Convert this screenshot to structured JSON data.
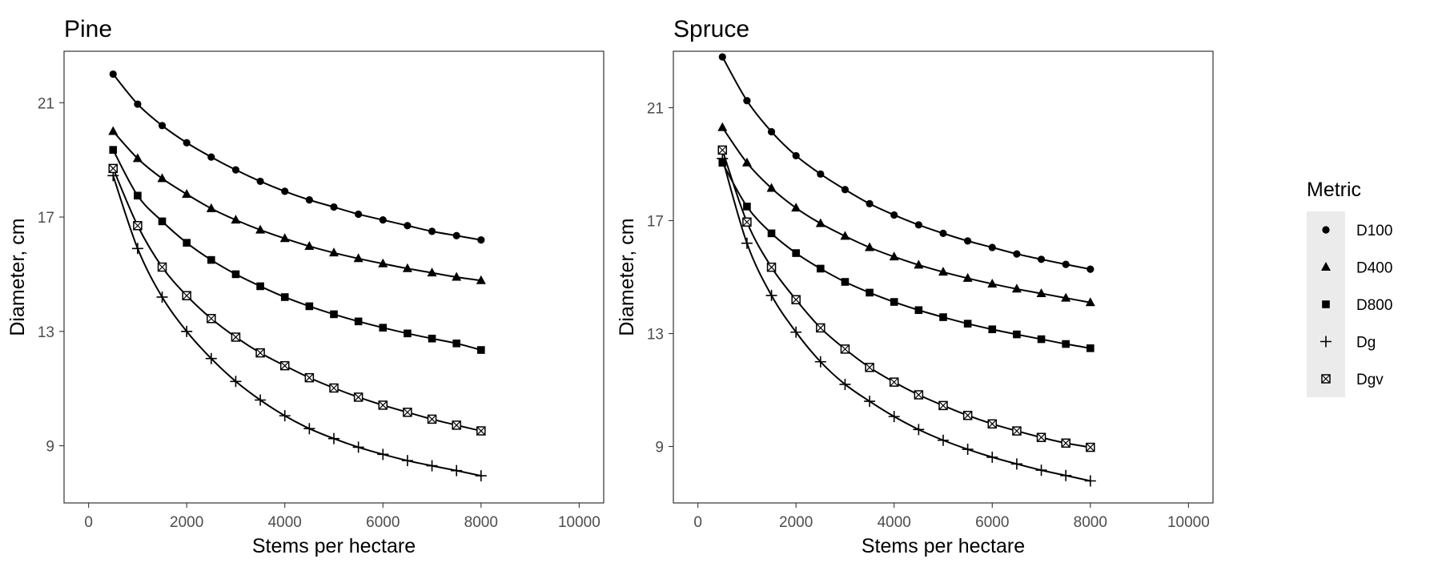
{
  "chart_data": [
    {
      "type": "line",
      "title": "Pine",
      "xlabel": "Stems per hectare",
      "ylabel": "Diameter, cm",
      "xlim": [
        -500,
        10500
      ],
      "ylim": [
        7.0,
        22.8
      ],
      "xticks": [
        0,
        2000,
        4000,
        6000,
        8000,
        10000
      ],
      "xtick_labels": [
        "0",
        "2000",
        "4000",
        "6000",
        "8000",
        "10000"
      ],
      "yticks": [
        9,
        13,
        17,
        21
      ],
      "ytick_labels": [
        "9",
        "13",
        "17",
        "21"
      ],
      "grid": false,
      "x": [
        500,
        1000,
        1500,
        2000,
        2500,
        3000,
        3500,
        4000,
        4500,
        5000,
        5500,
        6000,
        6500,
        7000,
        7500,
        8000
      ],
      "series": [
        {
          "name": "D100",
          "marker": "circle",
          "values": [
            22.0,
            20.95,
            20.2,
            19.6,
            19.1,
            18.65,
            18.25,
            17.9,
            17.6,
            17.35,
            17.1,
            16.9,
            16.7,
            16.5,
            16.35,
            16.2
          ]
        },
        {
          "name": "D400",
          "marker": "triangle",
          "values": [
            20.0,
            19.05,
            18.35,
            17.8,
            17.3,
            16.9,
            16.55,
            16.25,
            15.98,
            15.75,
            15.55,
            15.37,
            15.2,
            15.05,
            14.9,
            14.78
          ]
        },
        {
          "name": "D800",
          "marker": "square",
          "values": [
            19.35,
            17.75,
            16.85,
            16.1,
            15.5,
            15.0,
            14.58,
            14.2,
            13.88,
            13.6,
            13.35,
            13.13,
            12.93,
            12.75,
            12.58,
            12.35
          ]
        },
        {
          "name": "Dg",
          "marker": "plus",
          "values": [
            18.45,
            15.9,
            14.2,
            13.0,
            12.05,
            11.25,
            10.6,
            10.05,
            9.6,
            9.25,
            8.95,
            8.7,
            8.48,
            8.3,
            8.13,
            7.95
          ]
        },
        {
          "name": "Dgv",
          "marker": "boxx",
          "values": [
            18.7,
            16.7,
            15.25,
            14.25,
            13.45,
            12.8,
            12.25,
            11.8,
            11.38,
            11.02,
            10.7,
            10.42,
            10.17,
            9.93,
            9.72,
            9.52
          ]
        }
      ]
    },
    {
      "type": "line",
      "title": "Spruce",
      "xlabel": "Stems per hectare",
      "ylabel": "Diameter, cm",
      "xlim": [
        -500,
        10500
      ],
      "ylim": [
        7.0,
        23.0
      ],
      "xticks": [
        0,
        2000,
        4000,
        6000,
        8000,
        10000
      ],
      "xtick_labels": [
        "0",
        "2000",
        "4000",
        "6000",
        "8000",
        "10000"
      ],
      "yticks": [
        9,
        13,
        17,
        21
      ],
      "ytick_labels": [
        "9",
        "13",
        "17",
        "21"
      ],
      "grid": false,
      "x": [
        500,
        1000,
        1500,
        2000,
        2500,
        3000,
        3500,
        4000,
        4500,
        5000,
        5500,
        6000,
        6500,
        7000,
        7500,
        8000
      ],
      "series": [
        {
          "name": "D100",
          "marker": "circle",
          "values": [
            22.8,
            21.25,
            20.15,
            19.3,
            18.65,
            18.1,
            17.6,
            17.2,
            16.85,
            16.55,
            16.28,
            16.05,
            15.82,
            15.63,
            15.45,
            15.28
          ]
        },
        {
          "name": "D400",
          "marker": "triangle",
          "values": [
            20.3,
            19.05,
            18.15,
            17.45,
            16.9,
            16.45,
            16.05,
            15.72,
            15.43,
            15.18,
            14.96,
            14.76,
            14.58,
            14.42,
            14.26,
            14.1
          ]
        },
        {
          "name": "D800",
          "marker": "square",
          "values": [
            19.05,
            17.5,
            16.55,
            15.85,
            15.3,
            14.83,
            14.45,
            14.12,
            13.83,
            13.58,
            13.35,
            13.15,
            12.97,
            12.8,
            12.63,
            12.48
          ]
        },
        {
          "name": "Dg",
          "marker": "plus",
          "values": [
            19.2,
            16.2,
            14.35,
            13.05,
            12.0,
            11.2,
            10.6,
            10.06,
            9.6,
            9.22,
            8.9,
            8.62,
            8.38,
            8.16,
            7.97,
            7.78
          ]
        },
        {
          "name": "Dgv",
          "marker": "boxx",
          "values": [
            19.5,
            16.95,
            15.35,
            14.2,
            13.2,
            12.45,
            11.8,
            11.28,
            10.83,
            10.45,
            10.1,
            9.8,
            9.55,
            9.32,
            9.12,
            8.97
          ]
        }
      ]
    }
  ],
  "legend": {
    "title": "Metric",
    "position": "right",
    "items": [
      {
        "label": "D100",
        "marker": "circle"
      },
      {
        "label": "D400",
        "marker": "triangle"
      },
      {
        "label": "D800",
        "marker": "square"
      },
      {
        "label": "Dg",
        "marker": "plus"
      },
      {
        "label": "Dgv",
        "marker": "boxx"
      }
    ]
  },
  "colors": {
    "line": "#000000",
    "panel_border": "#333333",
    "tick_text": "#4d4d4d",
    "legend_key_bg": "#ebebeb"
  }
}
